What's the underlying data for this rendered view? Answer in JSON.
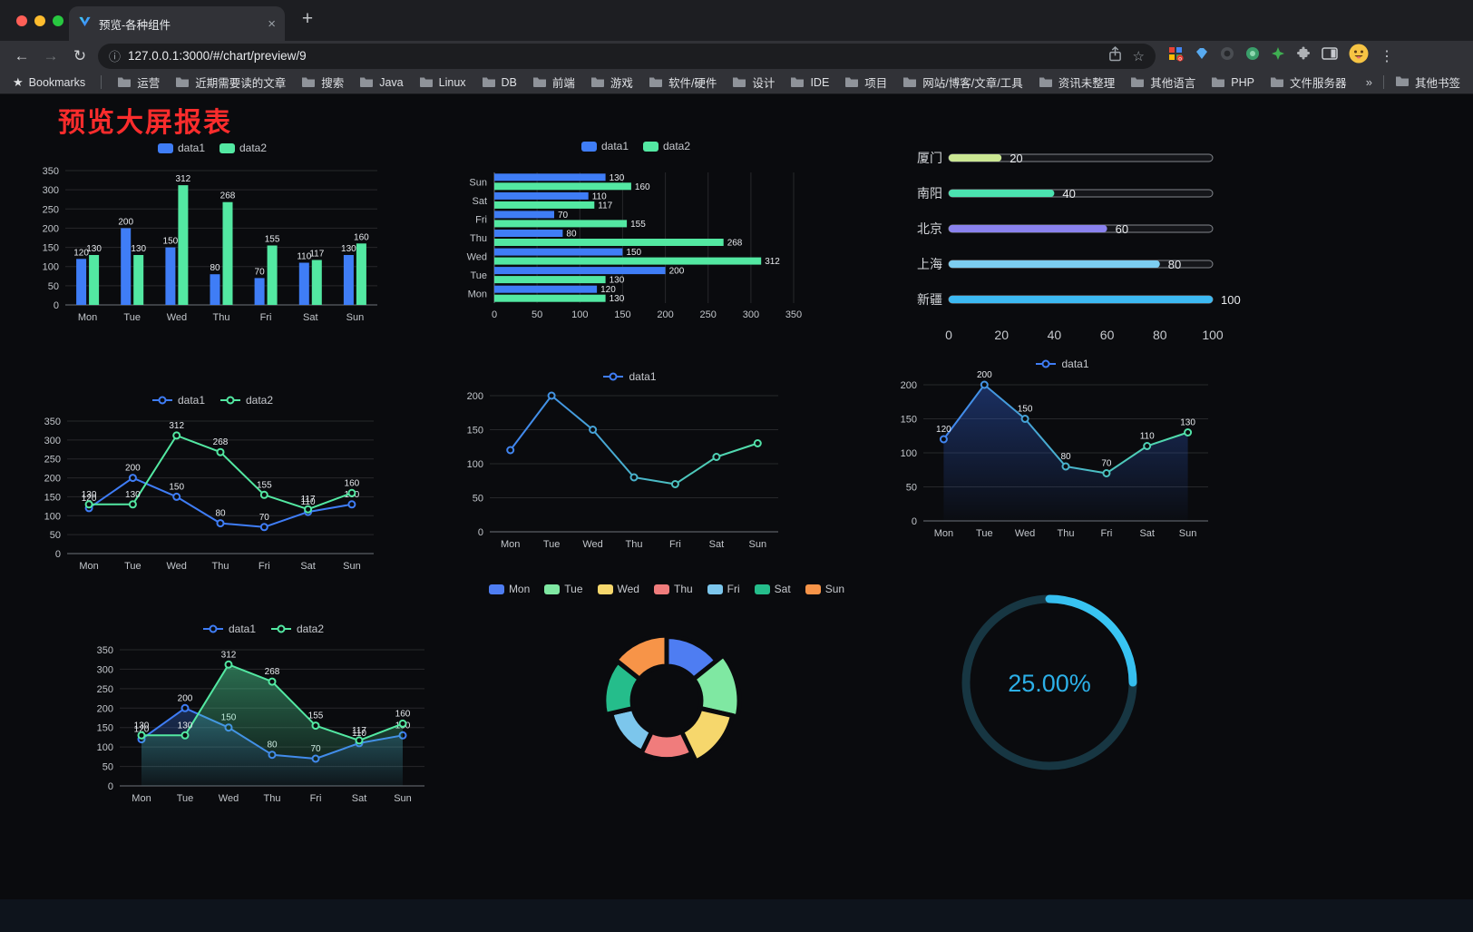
{
  "browser": {
    "tab_title": "预览-各种组件",
    "url": "127.0.0.1:3000/#/chart/preview/9",
    "icons": {
      "back": "←",
      "forward": "→",
      "reload": "↻",
      "info": "ⓘ",
      "new_tab": "+",
      "close_tab": "×",
      "star": "☆",
      "menu": "⋮",
      "overflow": "»",
      "bookmarks_star": "★"
    },
    "extension_icons": [
      "grid-extension-icon",
      "gem-extension-icon",
      "dark-extension-icon",
      "green-extension-icon",
      "star-extension-icon",
      "puzzle-icon",
      "side-panel-icon",
      "profile-avatar",
      "menu-icon"
    ],
    "bookmarks_label": "Bookmarks",
    "bookmarks": [
      "运营",
      "近期需要读的文章",
      "搜索",
      "Java",
      "Linux",
      "DB",
      "前端",
      "游戏",
      "软件/硬件",
      "设计",
      "IDE",
      "项目",
      "网站/博客/文章/工具",
      "资讯未整理",
      "其他语言",
      "PHP",
      "文件服务器"
    ],
    "other_bookmarks": "其他书签"
  },
  "page": {
    "title": "预览大屏报表",
    "title_color": "#fa2c2c",
    "background": "#0a0b0e"
  },
  "chart_data": [
    {
      "id": "bar-vertical",
      "type": "bar",
      "categories": [
        "Mon",
        "Tue",
        "Wed",
        "Thu",
        "Fri",
        "Sat",
        "Sun"
      ],
      "series": [
        {
          "name": "data1",
          "color": "#3f7df6",
          "values": [
            120,
            200,
            150,
            80,
            70,
            110,
            130
          ]
        },
        {
          "name": "data2",
          "color": "#53e8a2",
          "values": [
            130,
            130,
            312,
            268,
            155,
            117,
            160
          ]
        }
      ],
      "ylim": [
        0,
        350
      ],
      "yticks": [
        0,
        50,
        100,
        150,
        200,
        250,
        300,
        350
      ],
      "legend": [
        "data1",
        "data2"
      ],
      "legend_position": "top",
      "grid": true
    },
    {
      "id": "bar-horizontal",
      "type": "bar",
      "orientation": "horizontal",
      "categories": [
        "Mon",
        "Tue",
        "Wed",
        "Thu",
        "Fri",
        "Sat",
        "Sun"
      ],
      "display_order_top_to_bottom": [
        "Sun",
        "Sat",
        "Fri",
        "Thu",
        "Wed",
        "Tue",
        "Mon"
      ],
      "series": [
        {
          "name": "data1",
          "color": "#3f7df6",
          "values": [
            120,
            200,
            150,
            80,
            70,
            110,
            130
          ]
        },
        {
          "name": "data2",
          "color": "#53e8a2",
          "values": [
            130,
            130,
            312,
            268,
            155,
            117,
            160
          ]
        }
      ],
      "xlim": [
        0,
        350
      ],
      "xticks": [
        0,
        50,
        100,
        150,
        200,
        250,
        300,
        350
      ],
      "legend": [
        "data1",
        "data2"
      ],
      "legend_position": "top",
      "grid": true
    },
    {
      "id": "progress-bars",
      "type": "bar",
      "style": "progress",
      "items": [
        {
          "label": "厦门",
          "value": 20,
          "color": "#cbe793"
        },
        {
          "label": "南阳",
          "value": 40,
          "color": "#4be3b0"
        },
        {
          "label": "北京",
          "value": 60,
          "color": "#8a82ee"
        },
        {
          "label": "上海",
          "value": 80,
          "color": "#7ccdf0"
        },
        {
          "label": "新疆",
          "value": 100,
          "color": "#3cb9f2"
        }
      ],
      "xlim": [
        0,
        100
      ],
      "xticks": [
        0,
        20,
        40,
        60,
        80,
        100
      ]
    },
    {
      "id": "line-dual",
      "type": "line",
      "categories": [
        "Mon",
        "Tue",
        "Wed",
        "Thu",
        "Fri",
        "Sat",
        "Sun"
      ],
      "series": [
        {
          "name": "data1",
          "color": "#3f7df6",
          "values": [
            120,
            200,
            150,
            80,
            70,
            110,
            130
          ]
        },
        {
          "name": "data2",
          "color": "#53e8a2",
          "values": [
            130,
            130,
            312,
            268,
            155,
            117,
            160
          ]
        }
      ],
      "ylim": [
        0,
        350
      ],
      "yticks": [
        0,
        50,
        100,
        150,
        200,
        250,
        300,
        350
      ],
      "legend": [
        "data1",
        "data2"
      ],
      "show_labels": true
    },
    {
      "id": "line-single",
      "type": "line",
      "categories": [
        "Mon",
        "Tue",
        "Wed",
        "Thu",
        "Fri",
        "Sat",
        "Sun"
      ],
      "series": [
        {
          "name": "data1",
          "gradient": [
            "#3f7df6",
            "#53e8a2"
          ],
          "values": [
            120,
            200,
            150,
            80,
            70,
            110,
            130
          ]
        }
      ],
      "ylim": [
        0,
        200
      ],
      "yticks": [
        0,
        50,
        100,
        150,
        200
      ],
      "legend": [
        "data1"
      ],
      "show_labels": false
    },
    {
      "id": "line-area-single",
      "type": "area",
      "categories": [
        "Mon",
        "Tue",
        "Wed",
        "Thu",
        "Fri",
        "Sat",
        "Sun"
      ],
      "series": [
        {
          "name": "data1",
          "gradient": [
            "#3f7df6",
            "#53e8a2"
          ],
          "area": [
            "rgba(47,92,200,0.45)",
            "rgba(47,92,200,0.02)"
          ],
          "values": [
            120,
            200,
            150,
            80,
            70,
            110,
            130
          ]
        }
      ],
      "ylim": [
        0,
        200
      ],
      "yticks": [
        0,
        50,
        100,
        150,
        200
      ],
      "legend": [
        "data1"
      ],
      "show_labels": true
    },
    {
      "id": "line-area-dual",
      "type": "area",
      "categories": [
        "Mon",
        "Tue",
        "Wed",
        "Thu",
        "Fri",
        "Sat",
        "Sun"
      ],
      "series": [
        {
          "name": "data1",
          "color": "#3f7df6",
          "area": [
            "rgba(63,125,246,0.30)",
            "rgba(63,125,246,0.03)"
          ],
          "values": [
            120,
            200,
            150,
            80,
            70,
            110,
            130
          ]
        },
        {
          "name": "data2",
          "color": "#53e8a2",
          "area": [
            "rgba(83,232,162,0.45)",
            "rgba(83,232,162,0.03)"
          ],
          "values": [
            130,
            130,
            312,
            268,
            155,
            117,
            160
          ]
        }
      ],
      "ylim": [
        0,
        350
      ],
      "yticks": [
        0,
        50,
        100,
        150,
        200,
        250,
        300,
        350
      ],
      "legend": [
        "data1",
        "data2"
      ],
      "show_labels": true
    },
    {
      "id": "rose-pie",
      "type": "pie",
      "rose": true,
      "items": [
        {
          "name": "Mon",
          "value": 120,
          "color": "#4e7df2"
        },
        {
          "name": "Tue",
          "value": 200,
          "color": "#7fe8a2"
        },
        {
          "name": "Wed",
          "value": 150,
          "color": "#f6d76c"
        },
        {
          "name": "Thu",
          "value": 80,
          "color": "#f07c7c"
        },
        {
          "name": "Fri",
          "value": 70,
          "color": "#7cc6ec"
        },
        {
          "name": "Sat",
          "value": 110,
          "color": "#25bd8b"
        },
        {
          "name": "Sun",
          "value": 130,
          "color": "#f79448"
        }
      ],
      "legend_position": "top"
    },
    {
      "id": "gauge",
      "type": "gauge",
      "value": 25,
      "max": 100,
      "display": "25.00%",
      "color": "#2cb0e8",
      "track_color": "#173642"
    }
  ]
}
